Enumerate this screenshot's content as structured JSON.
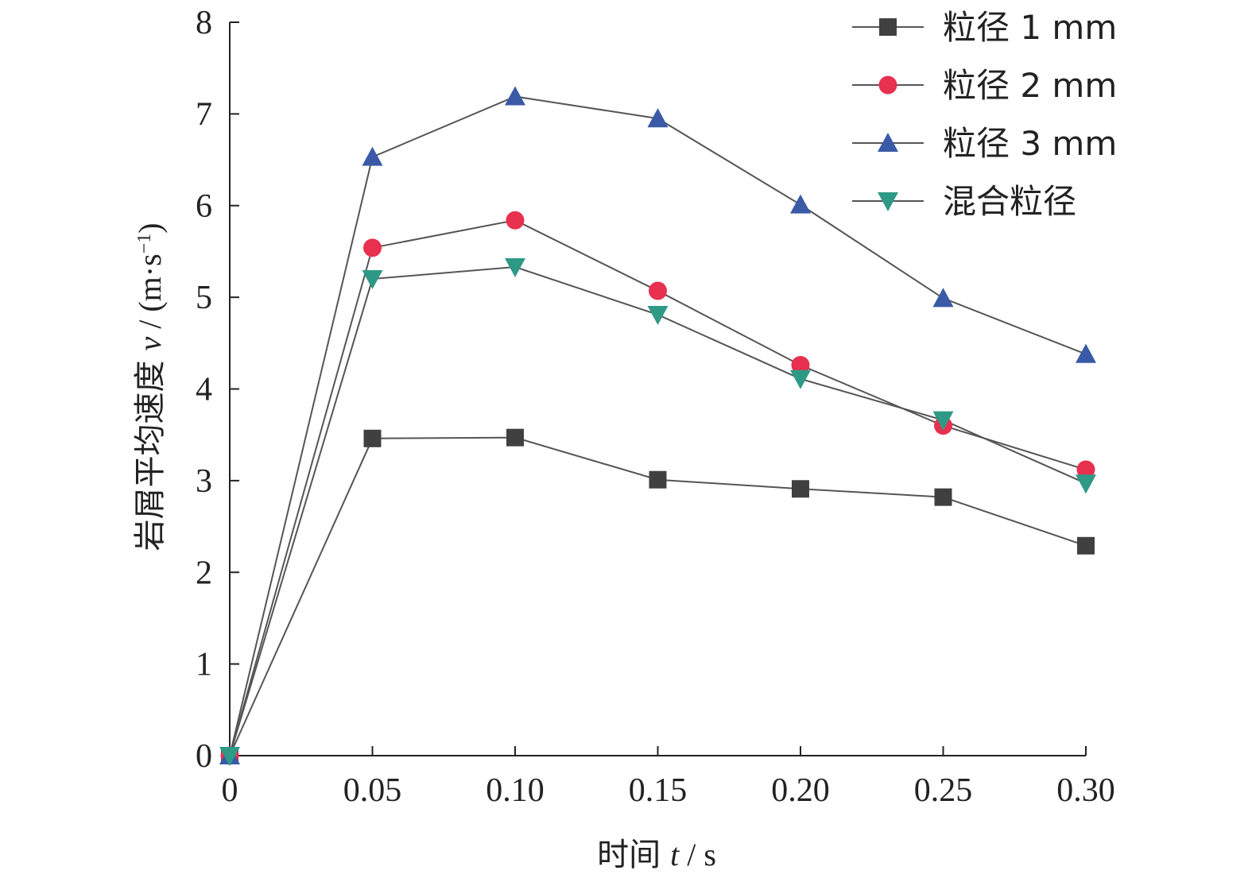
{
  "chart_data": {
    "type": "line",
    "x": [
      0,
      0.05,
      0.1,
      0.15,
      0.2,
      0.25,
      0.3
    ],
    "x_tick_labels": [
      "0",
      "0.05",
      "0.10",
      "0.15",
      "0.20",
      "0.25",
      "0.30"
    ],
    "y_tick_labels": [
      "0",
      "1",
      "2",
      "3",
      "4",
      "5",
      "6",
      "7",
      "8"
    ],
    "xlim": [
      0,
      0.3
    ],
    "ylim": [
      0,
      8
    ],
    "xlabel": {
      "cn": "时间",
      "var": "t",
      "unit": " / s"
    },
    "ylabel": {
      "cn": "岩屑平均速度",
      "var": "v",
      "unit_prefix": " / (m·s",
      "unit_exp": "−1",
      "unit_suffix": ")"
    },
    "grid": false,
    "legend_position": "top-right",
    "series": [
      {
        "name": "粒径 1 mm",
        "color": "#404040",
        "marker": "square",
        "values": [
          0,
          3.46,
          3.47,
          3.01,
          2.91,
          2.82,
          2.29
        ]
      },
      {
        "name": "粒径 2 mm",
        "color": "#e8304f",
        "marker": "circle",
        "values": [
          0,
          5.54,
          5.84,
          5.07,
          4.26,
          3.6,
          3.12
        ]
      },
      {
        "name": "粒径 3 mm",
        "color": "#3a5aa8",
        "marker": "triangle-up",
        "values": [
          0,
          6.53,
          7.19,
          6.95,
          6.01,
          4.99,
          4.38
        ]
      },
      {
        "name": "混合粒径",
        "color": "#2e9a86",
        "marker": "triangle-down",
        "values": [
          0,
          5.2,
          5.33,
          4.81,
          4.11,
          3.66,
          2.97
        ]
      }
    ]
  }
}
